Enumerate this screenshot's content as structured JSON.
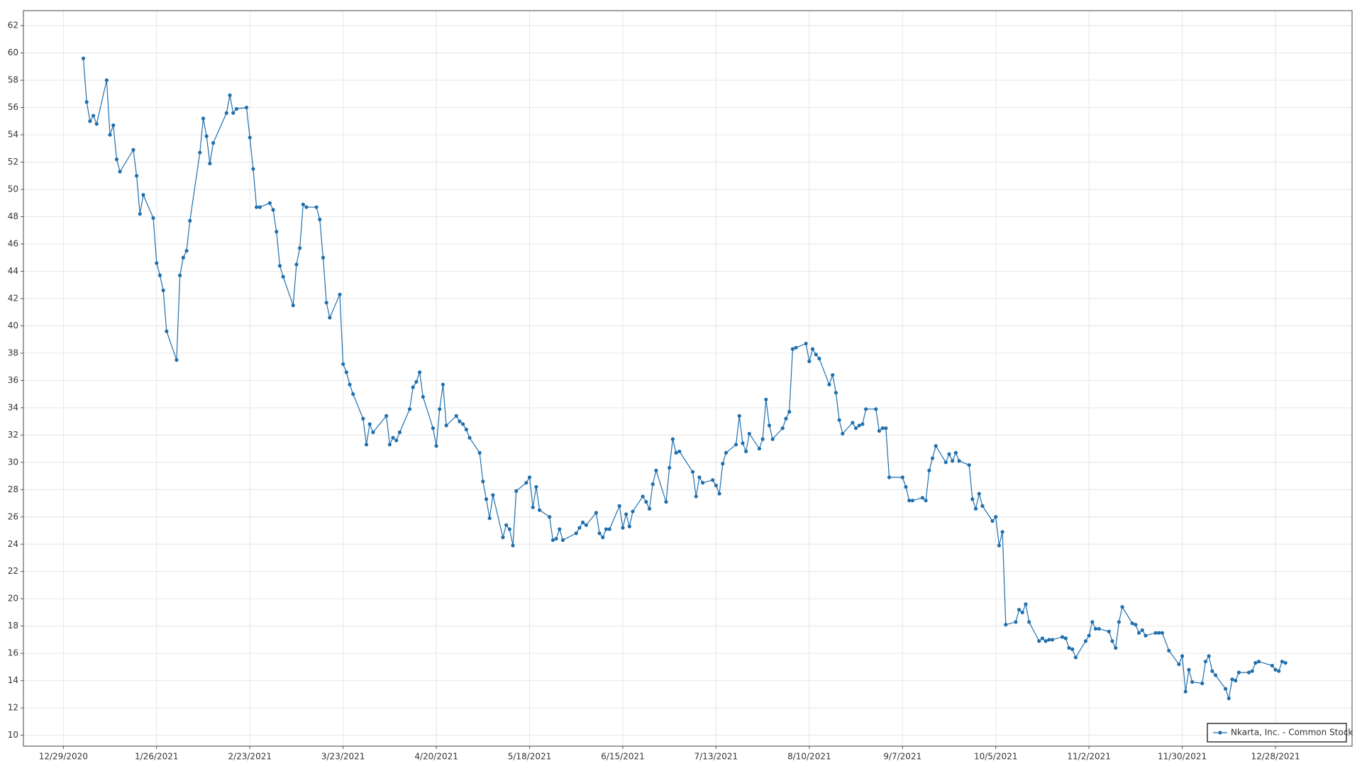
{
  "chart_data": {
    "type": "line",
    "x": [
      "2021-01-04",
      "2021-01-05",
      "2021-01-06",
      "2021-01-07",
      "2021-01-08",
      "2021-01-11",
      "2021-01-12",
      "2021-01-13",
      "2021-01-14",
      "2021-01-15",
      "2021-01-19",
      "2021-01-20",
      "2021-01-21",
      "2021-01-22",
      "2021-01-25",
      "2021-01-26",
      "2021-01-27",
      "2021-01-28",
      "2021-01-29",
      "2021-02-01",
      "2021-02-02",
      "2021-02-03",
      "2021-02-04",
      "2021-02-05",
      "2021-02-08",
      "2021-02-09",
      "2021-02-10",
      "2021-02-11",
      "2021-02-12",
      "2021-02-16",
      "2021-02-17",
      "2021-02-18",
      "2021-02-19",
      "2021-02-22",
      "2021-02-23",
      "2021-02-24",
      "2021-02-25",
      "2021-02-26",
      "2021-03-01",
      "2021-03-02",
      "2021-03-03",
      "2021-03-04",
      "2021-03-05",
      "2021-03-08",
      "2021-03-09",
      "2021-03-10",
      "2021-03-11",
      "2021-03-12",
      "2021-03-15",
      "2021-03-16",
      "2021-03-17",
      "2021-03-18",
      "2021-03-19",
      "2021-03-22",
      "2021-03-23",
      "2021-03-24",
      "2021-03-25",
      "2021-03-26",
      "2021-03-29",
      "2021-03-30",
      "2021-03-31",
      "2021-04-01",
      "2021-04-05",
      "2021-04-06",
      "2021-04-07",
      "2021-04-08",
      "2021-04-09",
      "2021-04-12",
      "2021-04-13",
      "2021-04-14",
      "2021-04-15",
      "2021-04-16",
      "2021-04-19",
      "2021-04-20",
      "2021-04-21",
      "2021-04-22",
      "2021-04-23",
      "2021-04-26",
      "2021-04-27",
      "2021-04-28",
      "2021-04-29",
      "2021-04-30",
      "2021-05-03",
      "2021-05-04",
      "2021-05-05",
      "2021-05-06",
      "2021-05-07",
      "2021-05-10",
      "2021-05-11",
      "2021-05-12",
      "2021-05-13",
      "2021-05-14",
      "2021-05-17",
      "2021-05-18",
      "2021-05-19",
      "2021-05-20",
      "2021-05-21",
      "2021-05-24",
      "2021-05-25",
      "2021-05-26",
      "2021-05-27",
      "2021-05-28",
      "2021-06-01",
      "2021-06-02",
      "2021-06-03",
      "2021-06-04",
      "2021-06-07",
      "2021-06-08",
      "2021-06-09",
      "2021-06-10",
      "2021-06-11",
      "2021-06-14",
      "2021-06-15",
      "2021-06-16",
      "2021-06-17",
      "2021-06-18",
      "2021-06-21",
      "2021-06-22",
      "2021-06-23",
      "2021-06-24",
      "2021-06-25",
      "2021-06-28",
      "2021-06-29",
      "2021-06-30",
      "2021-07-01",
      "2021-07-02",
      "2021-07-06",
      "2021-07-07",
      "2021-07-08",
      "2021-07-09",
      "2021-07-12",
      "2021-07-13",
      "2021-07-14",
      "2021-07-15",
      "2021-07-16",
      "2021-07-19",
      "2021-07-20",
      "2021-07-21",
      "2021-07-22",
      "2021-07-23",
      "2021-07-26",
      "2021-07-27",
      "2021-07-28",
      "2021-07-29",
      "2021-07-30",
      "2021-08-02",
      "2021-08-03",
      "2021-08-04",
      "2021-08-05",
      "2021-08-06",
      "2021-08-09",
      "2021-08-10",
      "2021-08-11",
      "2021-08-12",
      "2021-08-13",
      "2021-08-16",
      "2021-08-17",
      "2021-08-18",
      "2021-08-19",
      "2021-08-20",
      "2021-08-23",
      "2021-08-24",
      "2021-08-25",
      "2021-08-26",
      "2021-08-27",
      "2021-08-30",
      "2021-08-31",
      "2021-09-01",
      "2021-09-02",
      "2021-09-03",
      "2021-09-07",
      "2021-09-08",
      "2021-09-09",
      "2021-09-10",
      "2021-09-13",
      "2021-09-14",
      "2021-09-15",
      "2021-09-16",
      "2021-09-17",
      "2021-09-20",
      "2021-09-21",
      "2021-09-22",
      "2021-09-23",
      "2021-09-24",
      "2021-09-27",
      "2021-09-28",
      "2021-09-29",
      "2021-09-30",
      "2021-10-01",
      "2021-10-04",
      "2021-10-05",
      "2021-10-06",
      "2021-10-07",
      "2021-10-08",
      "2021-10-11",
      "2021-10-12",
      "2021-10-13",
      "2021-10-14",
      "2021-10-15",
      "2021-10-18",
      "2021-10-19",
      "2021-10-20",
      "2021-10-21",
      "2021-10-22",
      "2021-10-25",
      "2021-10-26",
      "2021-10-27",
      "2021-10-28",
      "2021-10-29",
      "2021-11-01",
      "2021-11-02",
      "2021-11-03",
      "2021-11-04",
      "2021-11-05",
      "2021-11-08",
      "2021-11-09",
      "2021-11-10",
      "2021-11-11",
      "2021-11-12",
      "2021-11-15",
      "2021-11-16",
      "2021-11-17",
      "2021-11-18",
      "2021-11-19",
      "2021-11-22",
      "2021-11-23",
      "2021-11-24",
      "2021-11-26",
      "2021-11-29",
      "2021-11-30",
      "2021-12-01",
      "2021-12-02",
      "2021-12-03",
      "2021-12-06",
      "2021-12-07",
      "2021-12-08",
      "2021-12-09",
      "2021-12-10",
      "2021-12-13",
      "2021-12-14",
      "2021-12-15",
      "2021-12-16",
      "2021-12-17",
      "2021-12-20",
      "2021-12-21",
      "2021-12-22",
      "2021-12-23",
      "2021-12-27",
      "2021-12-28",
      "2021-12-29",
      "2021-12-30",
      "2021-12-31"
    ],
    "series": [
      {
        "name": "Nkarta, Inc. - Common Stock",
        "color": "#1f6fad",
        "values": [
          59.6,
          56.4,
          55,
          55.4,
          54.8,
          58,
          54,
          54.7,
          52.2,
          51.3,
          52.9,
          51,
          48.2,
          49.6,
          47.9,
          44.6,
          43.7,
          42.6,
          39.6,
          37.5,
          43.7,
          45,
          45.5,
          47.7,
          52.7,
          55.2,
          53.9,
          51.9,
          53.4,
          55.6,
          56.9,
          55.6,
          55.9,
          56,
          53.8,
          51.5,
          48.7,
          48.7,
          49,
          48.5,
          46.9,
          44.4,
          43.6,
          41.5,
          44.5,
          45.7,
          48.9,
          48.7,
          48.7,
          47.8,
          45,
          41.7,
          40.6,
          42.3,
          37.2,
          36.6,
          35.7,
          35,
          33.2,
          31.3,
          32.8,
          32.2,
          33.4,
          31.3,
          31.8,
          31.6,
          32.2,
          33.9,
          35.5,
          35.9,
          36.6,
          34.8,
          32.5,
          31.2,
          33.9,
          35.7,
          32.7,
          33.4,
          33,
          32.8,
          32.4,
          31.8,
          30.7,
          28.6,
          27.3,
          25.9,
          27.6,
          24.5,
          25.4,
          25.1,
          23.9,
          27.9,
          28.5,
          28.9,
          26.7,
          28.2,
          26.5,
          26,
          24.3,
          24.4,
          25.1,
          24.3,
          24.8,
          25.2,
          25.6,
          25.4,
          26.3,
          24.8,
          24.5,
          25.1,
          25.1,
          26.8,
          25.2,
          26.2,
          25.3,
          26.4,
          27.5,
          27.1,
          26.6,
          28.4,
          29.4,
          27.1,
          29.6,
          31.7,
          30.7,
          30.8,
          29.3,
          27.5,
          28.9,
          28.5,
          28.7,
          28.3,
          27.7,
          29.9,
          30.7,
          31.3,
          33.4,
          31.4,
          30.8,
          32.1,
          31,
          31.7,
          34.6,
          32.7,
          31.7,
          32.5,
          33.2,
          33.7,
          38.3,
          38.4,
          38.7,
          37.4,
          38.3,
          37.9,
          37.6,
          35.7,
          36.4,
          35.1,
          33.1,
          32.1,
          32.9,
          32.5,
          32.7,
          32.8,
          33.9,
          33.9,
          32.3,
          32.5,
          32.5,
          28.9,
          28.9,
          28.2,
          27.2,
          27.2,
          27.4,
          27.2,
          29.4,
          30.3,
          31.2,
          30,
          30.6,
          30.1,
          30.7,
          30.1,
          29.8,
          27.3,
          26.6,
          27.7,
          26.8,
          25.7,
          26,
          23.9,
          24.9,
          18.1,
          18.3,
          19.2,
          19,
          19.6,
          18.3,
          16.9,
          17.1,
          16.9,
          17,
          17,
          17.2,
          17.1,
          16.4,
          16.3,
          15.7,
          16.9,
          17.3,
          18.3,
          17.8,
          17.8,
          17.6,
          16.9,
          16.4,
          18.3,
          19.4,
          18.2,
          18.1,
          17.5,
          17.7,
          17.3,
          17.5,
          17.5,
          17.5,
          16.2,
          15.2,
          15.8,
          13.2,
          14.8,
          13.9,
          13.8,
          15.4,
          15.8,
          14.7,
          14.4,
          13.4,
          12.7,
          14.1,
          14,
          14.6,
          14.6,
          14.7,
          15.3,
          15.4,
          15.1,
          14.8,
          14.7,
          15.4,
          15.3
        ]
      }
    ],
    "xlim": [
      "2020-12-17",
      "2022-01-20"
    ],
    "xticks": [
      {
        "value": "2020-12-29",
        "label": "12/29/2020"
      },
      {
        "value": "2021-01-26",
        "label": "1/26/2021"
      },
      {
        "value": "2021-02-23",
        "label": "2/23/2021"
      },
      {
        "value": "2021-03-23",
        "label": "3/23/2021"
      },
      {
        "value": "2021-04-20",
        "label": "4/20/2021"
      },
      {
        "value": "2021-05-18",
        "label": "5/18/2021"
      },
      {
        "value": "2021-06-15",
        "label": "6/15/2021"
      },
      {
        "value": "2021-07-13",
        "label": "7/13/2021"
      },
      {
        "value": "2021-08-10",
        "label": "8/10/2021"
      },
      {
        "value": "2021-09-07",
        "label": "9/7/2021"
      },
      {
        "value": "2021-10-05",
        "label": "10/5/2021"
      },
      {
        "value": "2021-11-02",
        "label": "11/2/2021"
      },
      {
        "value": "2021-11-30",
        "label": "11/30/2021"
      },
      {
        "value": "2021-12-28",
        "label": "12/28/2021"
      }
    ],
    "ylim": [
      9.2,
      63.1
    ],
    "yticks": [
      10,
      12,
      14,
      16,
      18,
      20,
      22,
      24,
      26,
      28,
      30,
      32,
      34,
      36,
      38,
      40,
      42,
      44,
      46,
      48,
      50,
      52,
      54,
      56,
      58,
      60,
      62
    ],
    "grid": true,
    "legend": "lower right"
  }
}
